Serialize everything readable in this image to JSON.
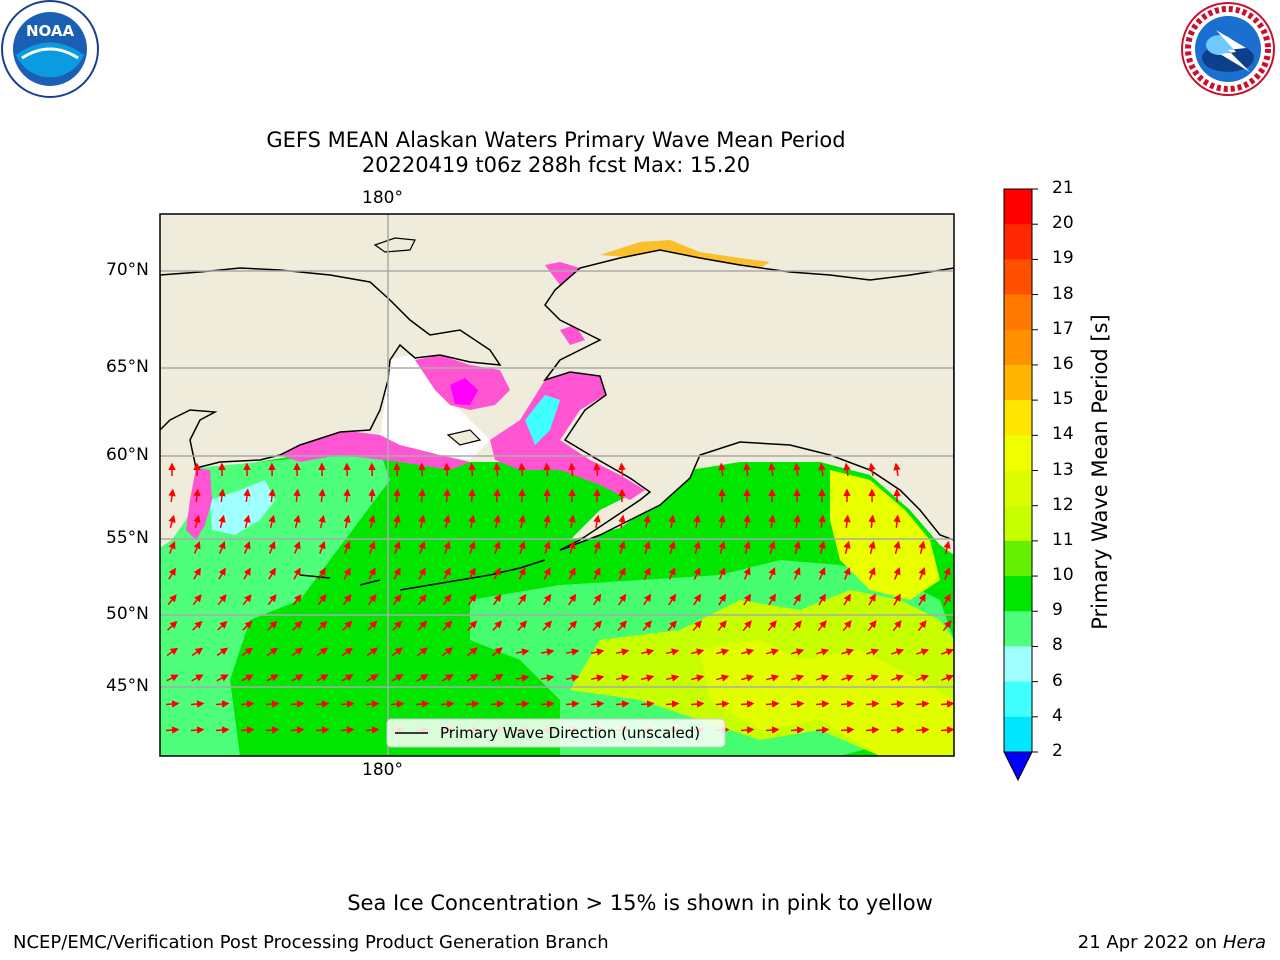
{
  "title": {
    "line1": "GEFS MEAN Alaskan Waters Primary Wave Mean Period",
    "line2": "20220419 t06z 288h fcst   Max: 15.20"
  },
  "logos": {
    "noara": "NOAA",
    "noaa_ring": "NATIONAL OCEANIC AND ATMOSPHERIC ADMINISTRATION · U.S. DEPARTMENT OF COMMERCE",
    "nws_ring": "NATIONAL WEATHER SERVICE"
  },
  "map": {
    "lon_label_top": "180°",
    "lon_label_bottom": "180°",
    "lat_labels": [
      "70°N",
      "65°N",
      "60°N",
      "55°N",
      "50°N",
      "45°N"
    ],
    "legend_label": "Primary Wave Direction (unscaled)",
    "land_color": "#efecdc",
    "ocean_colors": {
      "green": "#00e600",
      "light_green": "#4dff7a",
      "yellow_green": "#c8ff00",
      "yellow": "#e8ff00",
      "ice_pink": "#ff55d2",
      "ice_magenta": "#ff00ff",
      "arrow": "#ff0000"
    }
  },
  "colorbar": {
    "label": "Primary Wave Mean Period [s]",
    "ticks": [
      "21",
      "20",
      "19",
      "18",
      "17",
      "16",
      "15",
      "14",
      "13",
      "12",
      "11",
      "10",
      "9",
      "8",
      "6",
      "4",
      "2"
    ],
    "colors": [
      "#ff0000",
      "#ff2800",
      "#ff5000",
      "#ff7800",
      "#ff9000",
      "#ffb400",
      "#ffe600",
      "#f0ff00",
      "#dcff00",
      "#c8ff00",
      "#64f000",
      "#00e600",
      "#4dff7a",
      "#a0ffff",
      "#40ffff",
      "#00e6ff",
      "#00a0ff",
      "#0050ff"
    ],
    "extend_color": "#0000ff"
  },
  "footer": {
    "ice_note": "Sea Ice Concentration > 15% is shown in pink to yellow",
    "left": "NCEP/EMC/Verification Post Processing Product Generation Branch",
    "right_date": "21 Apr 2022 on ",
    "right_host": "Hera"
  }
}
